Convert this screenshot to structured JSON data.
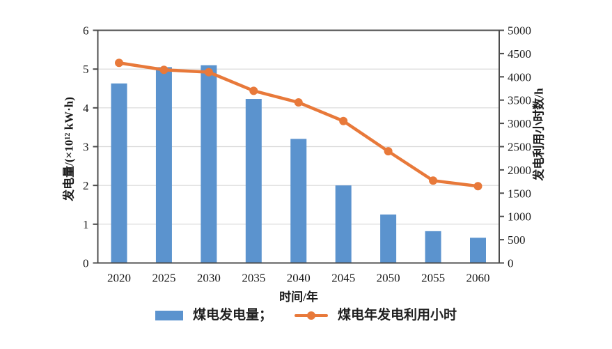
{
  "chart_data": {
    "type": "bar+line",
    "title": "",
    "categories": [
      "2020",
      "2025",
      "2030",
      "2035",
      "2040",
      "2045",
      "2050",
      "2055",
      "2060"
    ],
    "xlabel": "时间/年",
    "left_axis": {
      "label": "发电量/(×10¹² kW·h)",
      "min": 0,
      "max": 6,
      "tick_step": 1,
      "ticks": [
        "0",
        "1",
        "2",
        "3",
        "4",
        "5",
        "6"
      ]
    },
    "right_axis": {
      "label": "发电利用小时数/h",
      "min": 0,
      "max": 5000,
      "tick_step": 500,
      "ticks": [
        "0",
        "500",
        "1000",
        "1500",
        "2000",
        "2500",
        "3000",
        "3500",
        "4000",
        "4500",
        "5000"
      ]
    },
    "series": [
      {
        "name": "煤电发电量",
        "type": "bar",
        "axis": "left",
        "unit": "×10¹² kW·h",
        "color": "#5b93ce",
        "values": [
          4.63,
          5.05,
          5.1,
          4.23,
          3.2,
          2.0,
          1.25,
          0.82,
          0.65
        ]
      },
      {
        "name": "煤电年发电利用小时",
        "type": "line",
        "axis": "right",
        "unit": "h",
        "color": "#e8793a",
        "values": [
          4300,
          4150,
          4100,
          3700,
          3450,
          3050,
          2400,
          1770,
          1650
        ]
      }
    ],
    "legend": [
      {
        "label": "煤电发电量；",
        "marker": "bar-swatch"
      },
      {
        "label": "煤电年发电利用小时",
        "marker": "line-dot"
      }
    ],
    "grid": true,
    "legend_position": "bottom-center",
    "colors": {
      "bar": "#5b93ce",
      "line": "#e8793a",
      "axis": "#4c4c4c",
      "grid": "#d9d9d9",
      "text": "#1a1a1a",
      "background": "#ffffff"
    }
  }
}
